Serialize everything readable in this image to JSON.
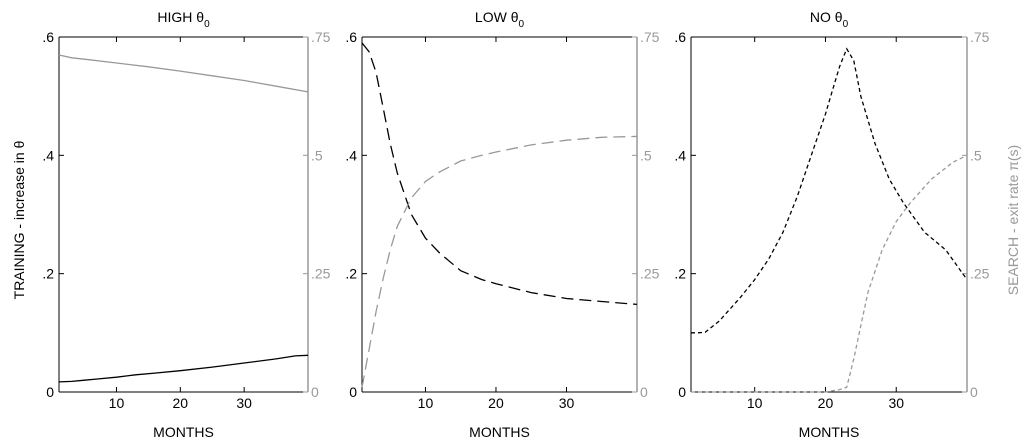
{
  "figure": {
    "left_axis_label": "TRAINING - increase in θ",
    "right_axis_label": "SEARCH - exit rate π(s)"
  },
  "colors": {
    "training": "#000000",
    "search": "#999999",
    "frame": "#000000",
    "right_axis": "#999999"
  },
  "chart_data": [
    {
      "type": "line",
      "title": "HIGH θ",
      "title_subscript": "0",
      "xlabel": "MONTHS",
      "xlim": [
        1,
        40
      ],
      "xticks": [
        10,
        20,
        30
      ],
      "ylim": [
        0,
        0.6
      ],
      "yticks": [
        {
          "v": 0,
          "label": "0"
        },
        {
          "v": 0.2,
          "label": ".2"
        },
        {
          "v": 0.4,
          "label": ".4"
        },
        {
          "v": 0.6,
          "label": ".6"
        }
      ],
      "y2lim": [
        0,
        0.75
      ],
      "y2ticks": [
        {
          "v": 0,
          "label": "0"
        },
        {
          "v": 0.25,
          "label": ".25"
        },
        {
          "v": 0.5,
          "label": ".5"
        },
        {
          "v": 0.75,
          "label": ".75"
        }
      ],
      "series": [
        {
          "axis": "left",
          "style": "solid",
          "color": "#000000",
          "x": [
            1,
            3,
            5,
            7,
            10,
            13,
            16,
            20,
            25,
            30,
            35,
            38,
            40
          ],
          "values": [
            0.017,
            0.018,
            0.02,
            0.022,
            0.025,
            0.029,
            0.032,
            0.036,
            0.042,
            0.049,
            0.056,
            0.061,
            0.062
          ]
        },
        {
          "axis": "right",
          "style": "solid",
          "color": "#999999",
          "x": [
            1,
            3,
            5,
            10,
            15,
            20,
            25,
            30,
            35,
            40
          ],
          "values": [
            0.712,
            0.706,
            0.703,
            0.695,
            0.687,
            0.678,
            0.668,
            0.658,
            0.646,
            0.634
          ]
        }
      ]
    },
    {
      "type": "line",
      "title": "LOW θ",
      "title_subscript": "0",
      "xlabel": "MONTHS",
      "xlim": [
        1,
        40
      ],
      "xticks": [
        10,
        20,
        30
      ],
      "ylim": [
        0,
        0.6
      ],
      "yticks": [
        {
          "v": 0,
          "label": "0"
        },
        {
          "v": 0.2,
          "label": ".2"
        },
        {
          "v": 0.4,
          "label": ".4"
        },
        {
          "v": 0.6,
          "label": ".6"
        }
      ],
      "y2lim": [
        0,
        0.75
      ],
      "y2ticks": [
        {
          "v": 0,
          "label": "0"
        },
        {
          "v": 0.25,
          "label": ".25"
        },
        {
          "v": 0.5,
          "label": ".5"
        },
        {
          "v": 0.75,
          "label": ".75"
        }
      ],
      "series": [
        {
          "axis": "left",
          "style": "long-dash",
          "color": "#000000",
          "x": [
            1,
            2,
            3,
            4,
            5,
            6,
            8,
            10,
            12,
            15,
            18,
            20,
            25,
            30,
            35,
            40
          ],
          "values": [
            0.59,
            0.575,
            0.54,
            0.48,
            0.42,
            0.37,
            0.3,
            0.26,
            0.235,
            0.205,
            0.19,
            0.183,
            0.168,
            0.158,
            0.153,
            0.148
          ]
        },
        {
          "axis": "right",
          "style": "long-dash",
          "color": "#999999",
          "x": [
            1,
            2,
            3,
            4,
            5,
            6,
            8,
            10,
            12,
            15,
            18,
            20,
            25,
            30,
            35,
            40
          ],
          "values": [
            0.01,
            0.09,
            0.17,
            0.24,
            0.3,
            0.35,
            0.41,
            0.445,
            0.465,
            0.488,
            0.5,
            0.507,
            0.522,
            0.532,
            0.538,
            0.54
          ]
        }
      ]
    },
    {
      "type": "line",
      "title": "NO θ",
      "title_subscript": "0",
      "xlabel": "MONTHS",
      "xlim": [
        1,
        40
      ],
      "xticks": [
        10,
        20,
        30
      ],
      "ylim": [
        0,
        0.6
      ],
      "yticks": [
        {
          "v": 0,
          "label": "0"
        },
        {
          "v": 0.2,
          "label": ".2"
        },
        {
          "v": 0.4,
          "label": ".4"
        },
        {
          "v": 0.6,
          "label": ".6"
        }
      ],
      "y2lim": [
        0,
        0.75
      ],
      "y2ticks": [
        {
          "v": 0,
          "label": "0"
        },
        {
          "v": 0.25,
          "label": ".25"
        },
        {
          "v": 0.5,
          "label": ".5"
        },
        {
          "v": 0.75,
          "label": ".75"
        }
      ],
      "series": [
        {
          "axis": "left",
          "style": "short-dash",
          "color": "#000000",
          "x": [
            1,
            2,
            3,
            5,
            8,
            10,
            12,
            14,
            16,
            18,
            20,
            21,
            22,
            23,
            24,
            25,
            27,
            29,
            31,
            34,
            37,
            40
          ],
          "values": [
            0.1,
            0.1,
            0.101,
            0.12,
            0.16,
            0.19,
            0.225,
            0.27,
            0.33,
            0.4,
            0.47,
            0.51,
            0.55,
            0.58,
            0.56,
            0.5,
            0.42,
            0.36,
            0.32,
            0.27,
            0.24,
            0.19
          ]
        },
        {
          "axis": "right",
          "style": "short-dash",
          "color": "#999999",
          "x": [
            1,
            5,
            10,
            15,
            20,
            22,
            23,
            24,
            25,
            26,
            28,
            30,
            32,
            35,
            38,
            40
          ],
          "values": [
            0,
            0,
            0,
            0,
            0,
            0.005,
            0.01,
            0.07,
            0.14,
            0.21,
            0.3,
            0.36,
            0.4,
            0.45,
            0.485,
            0.5
          ]
        }
      ]
    }
  ]
}
